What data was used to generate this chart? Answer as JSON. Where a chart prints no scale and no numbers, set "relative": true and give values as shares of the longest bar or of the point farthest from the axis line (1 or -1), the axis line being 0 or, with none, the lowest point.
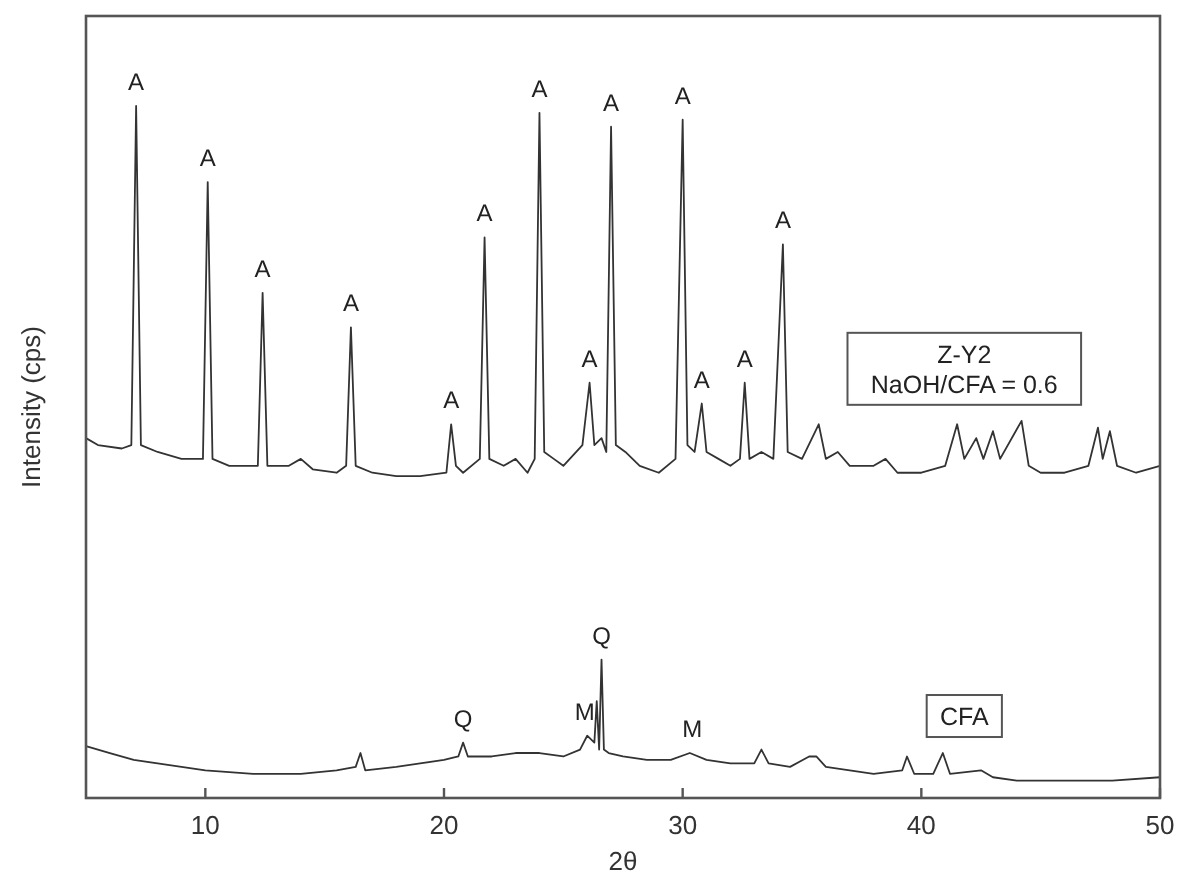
{
  "chart_data": {
    "type": "line",
    "relative": true,
    "xlabel": "2θ",
    "ylabel": "Intensity (cps)",
    "xlim": [
      5,
      50
    ],
    "xticks": [
      10,
      20,
      30,
      40,
      50
    ],
    "grid": false,
    "line_style": "solid",
    "series": [
      {
        "name": "Z-Y2\nNaOH/CFA = 0.6",
        "color": "#333333",
        "x": [
          5,
          5.5,
          6.5,
          6.9,
          7.1,
          7.3,
          8,
          9,
          9.9,
          10.1,
          10.3,
          11,
          12.2,
          12.4,
          12.6,
          13.5,
          14,
          14.5,
          15.5,
          15.9,
          16.1,
          16.3,
          17,
          18,
          19,
          20.1,
          20.3,
          20.5,
          20.8,
          21.5,
          21.7,
          21.9,
          22.5,
          23,
          23.5,
          23.8,
          24,
          24.2,
          24.6,
          25,
          25.8,
          26.1,
          26.3,
          26.6,
          26.8,
          27,
          27.2,
          27.6,
          28.2,
          29,
          29.7,
          30,
          30.2,
          30.5,
          30.8,
          31,
          31.5,
          32,
          32.4,
          32.6,
          32.8,
          33.3,
          33.8,
          34.2,
          34.4,
          35,
          35.7,
          36,
          36.5,
          37,
          38,
          38.5,
          39,
          40,
          41,
          41.5,
          41.8,
          42.3,
          42.6,
          43,
          43.3,
          44.2,
          44.5,
          45,
          46,
          47,
          47.4,
          47.6,
          47.9,
          48.2,
          49,
          50
        ],
        "values": [
          0.52,
          0.51,
          0.505,
          0.51,
          1.0,
          0.51,
          0.5,
          0.49,
          0.49,
          0.89,
          0.49,
          0.48,
          0.48,
          0.73,
          0.48,
          0.48,
          0.49,
          0.475,
          0.47,
          0.48,
          0.68,
          0.48,
          0.47,
          0.465,
          0.465,
          0.47,
          0.54,
          0.48,
          0.47,
          0.49,
          0.81,
          0.49,
          0.48,
          0.49,
          0.47,
          0.49,
          0.99,
          0.5,
          0.49,
          0.48,
          0.51,
          0.6,
          0.51,
          0.52,
          0.5,
          0.97,
          0.51,
          0.5,
          0.48,
          0.47,
          0.49,
          0.98,
          0.51,
          0.5,
          0.57,
          0.5,
          0.49,
          0.48,
          0.49,
          0.6,
          0.49,
          0.5,
          0.49,
          0.8,
          0.5,
          0.49,
          0.54,
          0.49,
          0.5,
          0.48,
          0.48,
          0.49,
          0.47,
          0.47,
          0.48,
          0.54,
          0.49,
          0.52,
          0.49,
          0.53,
          0.49,
          0.545,
          0.48,
          0.47,
          0.47,
          0.48,
          0.535,
          0.49,
          0.53,
          0.48,
          0.47,
          0.48
        ]
      },
      {
        "name": "CFA",
        "color": "#333333",
        "x": [
          5,
          6,
          7,
          8,
          9,
          10,
          12,
          14,
          15.5,
          16.3,
          16.5,
          16.7,
          18,
          19,
          20,
          20.6,
          20.8,
          21,
          22,
          23,
          24,
          25,
          25.7,
          26,
          26.3,
          26.4,
          26.5,
          26.6,
          26.7,
          26.9,
          27.5,
          28.5,
          29.5,
          30.3,
          31,
          32,
          33,
          33.3,
          33.6,
          34.5,
          35.3,
          35.6,
          36,
          37,
          38,
          39.2,
          39.4,
          39.7,
          40.5,
          40.9,
          41.2,
          42.5,
          43,
          44,
          46,
          48,
          50
        ],
        "values": [
          0.075,
          0.065,
          0.055,
          0.05,
          0.045,
          0.04,
          0.035,
          0.035,
          0.04,
          0.045,
          0.065,
          0.04,
          0.045,
          0.05,
          0.055,
          0.06,
          0.08,
          0.06,
          0.06,
          0.065,
          0.065,
          0.06,
          0.07,
          0.09,
          0.08,
          0.14,
          0.07,
          0.2,
          0.07,
          0.065,
          0.06,
          0.055,
          0.055,
          0.065,
          0.055,
          0.05,
          0.05,
          0.07,
          0.05,
          0.045,
          0.06,
          0.06,
          0.045,
          0.04,
          0.035,
          0.04,
          0.06,
          0.035,
          0.035,
          0.065,
          0.035,
          0.04,
          0.03,
          0.025,
          0.025,
          0.025,
          0.03
        ]
      }
    ],
    "annotations": [
      {
        "text": "A",
        "x": 7.1,
        "y": 1.0
      },
      {
        "text": "A",
        "x": 10.1,
        "y": 0.89
      },
      {
        "text": "A",
        "x": 12.4,
        "y": 0.73
      },
      {
        "text": "A",
        "x": 16.1,
        "y": 0.68
      },
      {
        "text": "A",
        "x": 20.3,
        "y": 0.54
      },
      {
        "text": "A",
        "x": 21.7,
        "y": 0.81
      },
      {
        "text": "A",
        "x": 24,
        "y": 0.99
      },
      {
        "text": "A",
        "x": 26.1,
        "y": 0.6
      },
      {
        "text": "A",
        "x": 27,
        "y": 0.97
      },
      {
        "text": "A",
        "x": 30,
        "y": 0.98
      },
      {
        "text": "A",
        "x": 30.8,
        "y": 0.57
      },
      {
        "text": "A",
        "x": 32.6,
        "y": 0.6
      },
      {
        "text": "A",
        "x": 34.2,
        "y": 0.8
      },
      {
        "text": "Q",
        "x": 20.8,
        "y": 0.08
      },
      {
        "text": "M",
        "x": 25.9,
        "y": 0.09
      },
      {
        "text": "Q",
        "x": 26.6,
        "y": 0.2
      },
      {
        "text": "M",
        "x": 30.4,
        "y": 0.065
      }
    ]
  }
}
